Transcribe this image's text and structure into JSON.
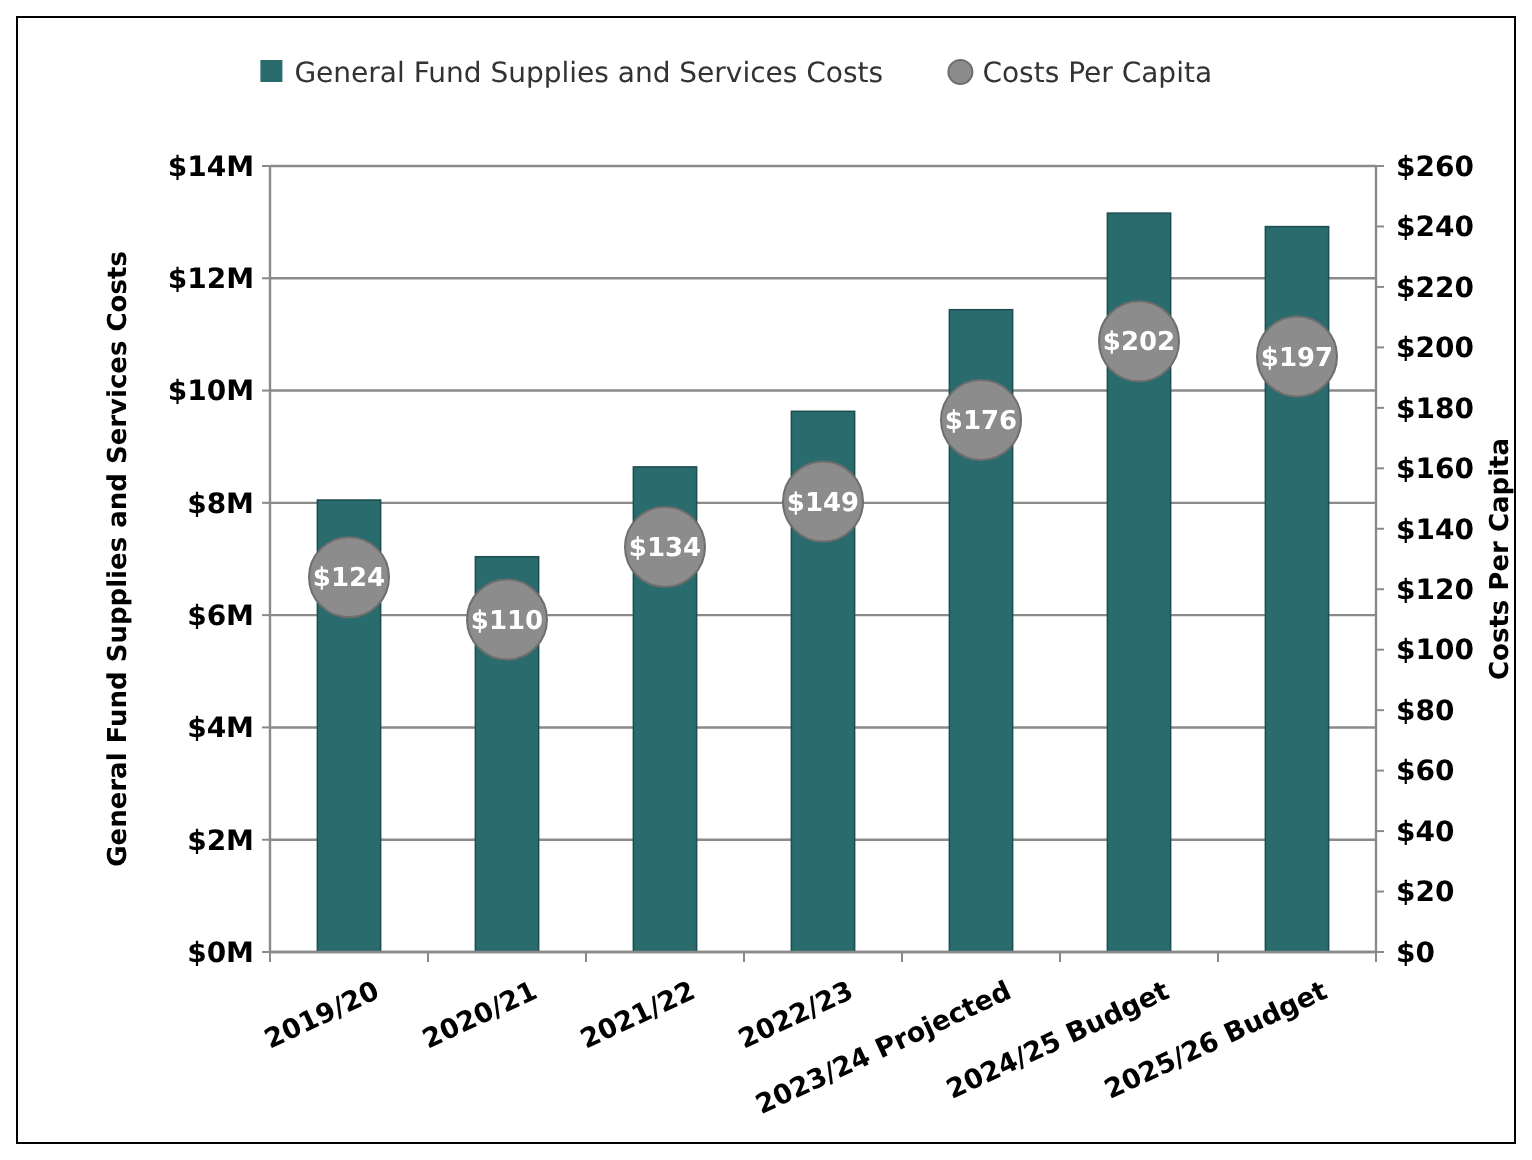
{
  "chart_data": {
    "type": "bar",
    "ylabel": "General Fund Supplies and Services Costs",
    "y2label": "Costs Per Capita",
    "categories": [
      "2019/20",
      "2020/21",
      "2021/22",
      "2022/23",
      "2023/24 Projected",
      "2024/25 Budget",
      "2025/26 Budget"
    ],
    "series": [
      {
        "name": "General Fund Supplies and Services Costs",
        "color": "#2a6b6e",
        "values": [
          8.05,
          7.04,
          8.64,
          9.63,
          11.44,
          13.16,
          12.92
        ]
      },
      {
        "name": "Costs Per Capita",
        "type": "scatter",
        "axis": "y2",
        "color": "#8c8c8c",
        "values": [
          124,
          110,
          134,
          149,
          176,
          202,
          197
        ],
        "value_labels": [
          "$124",
          "$110",
          "$134",
          "$149",
          "$176",
          "$202",
          "$197"
        ]
      }
    ],
    "ylim": [
      0,
      14
    ],
    "yticks": [
      {
        "value": 0,
        "label": "$0M"
      },
      {
        "value": 2,
        "label": "$2M"
      },
      {
        "value": 4,
        "label": "$4M"
      },
      {
        "value": 6,
        "label": "$6M"
      },
      {
        "value": 8,
        "label": "$8M"
      },
      {
        "value": 10,
        "label": "$10M"
      },
      {
        "value": 12,
        "label": "$12M"
      },
      {
        "value": 14,
        "label": "$14M"
      }
    ],
    "y2lim": [
      0,
      260
    ],
    "y2ticks": [
      {
        "value": 0,
        "label": "$0"
      },
      {
        "value": 20,
        "label": "$20"
      },
      {
        "value": 40,
        "label": "$40"
      },
      {
        "value": 60,
        "label": "$60"
      },
      {
        "value": 80,
        "label": "$80"
      },
      {
        "value": 100,
        "label": "$100"
      },
      {
        "value": 120,
        "label": "$120"
      },
      {
        "value": 140,
        "label": "$140"
      },
      {
        "value": 160,
        "label": "$160"
      },
      {
        "value": 180,
        "label": "$180"
      },
      {
        "value": 200,
        "label": "$200"
      },
      {
        "value": 220,
        "label": "$220"
      },
      {
        "value": 240,
        "label": "$240"
      },
      {
        "value": 260,
        "label": "$260"
      }
    ],
    "grid": "y",
    "legend": "top",
    "marker": "circle"
  }
}
